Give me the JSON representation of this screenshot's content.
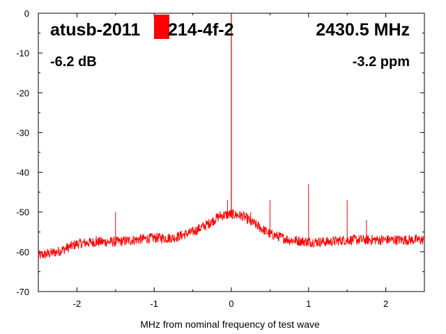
{
  "chart_data": {
    "type": "line",
    "title": "",
    "xlabel": "MHz from nominal frequency of test wave",
    "ylabel": "",
    "xlim": [
      -2.5,
      2.5
    ],
    "ylim": [
      -70,
      0
    ],
    "x_ticks": [
      -2,
      -1,
      0,
      1,
      2
    ],
    "x_tick_labels": [
      "-2",
      "-1",
      "0",
      "1",
      "2"
    ],
    "y_ticks": [
      0,
      -10,
      -20,
      -30,
      -40,
      -50,
      -60,
      -70
    ],
    "y_tick_labels": [
      "0",
      "-10",
      "-20",
      "-30",
      "-40",
      "-50",
      "-60",
      "-70"
    ],
    "grid": false,
    "series_color": "#ff0000",
    "annotations": {
      "device": "atusb-2011",
      "device_suffix": "214-4f-2",
      "frequency": "2430.5 MHz",
      "level": "-6.2 dB",
      "offset": "-3.2 ppm"
    },
    "noise_floor": {
      "x": [
        -2.5,
        -2.25,
        -2.0,
        -1.75,
        -1.5,
        -1.25,
        -1.0,
        -0.75,
        -0.5,
        -0.3,
        -0.15,
        0.0,
        0.15,
        0.3,
        0.5,
        0.75,
        1.0,
        1.25,
        1.5,
        1.75,
        2.0,
        2.25,
        2.5
      ],
      "y": [
        -61,
        -60,
        -58,
        -57.5,
        -57.5,
        -57,
        -56.5,
        -56.5,
        -55,
        -53,
        -51,
        -50.5,
        -51,
        -53,
        -55.5,
        -57,
        -57.5,
        -57.5,
        -57,
        -57,
        -57,
        -57,
        -57
      ]
    },
    "spurs": {
      "x": [
        -1.75,
        -1.5,
        -0.27,
        -0.05,
        0.0,
        0.25,
        0.5,
        1.0,
        1.5,
        1.75
      ],
      "y": [
        -56,
        -50,
        -52,
        -47,
        0,
        -50,
        -47,
        -43,
        -47,
        -52
      ]
    }
  }
}
